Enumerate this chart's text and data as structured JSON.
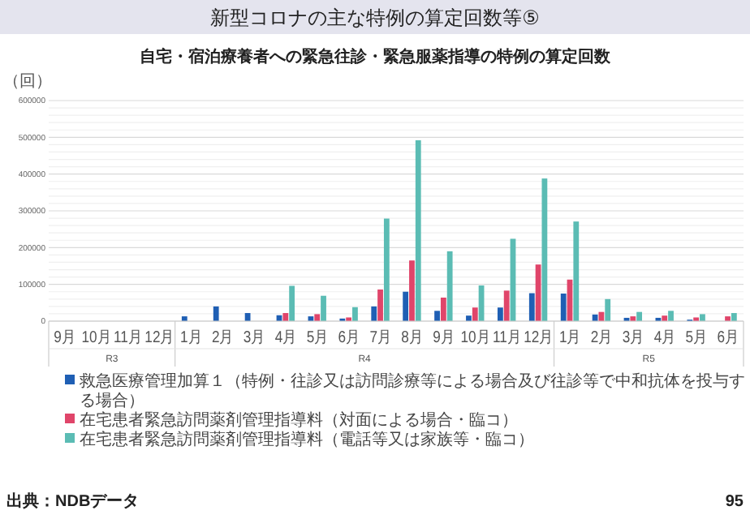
{
  "chart_data": {
    "type": "bar",
    "title": "新型コロナの主な特例の算定回数等⑤",
    "subtitle": "自宅・宿泊療養者への緊急往診・緊急服薬指導の特例の算定回数",
    "ylabel": "（回）",
    "categories": [
      "9月",
      "10月",
      "11月",
      "12月",
      "1月",
      "2月",
      "3月",
      "4月",
      "5月",
      "6月",
      "7月",
      "8月",
      "9月",
      "10月",
      "11月",
      "12月",
      "1月",
      "2月",
      "3月",
      "4月",
      "5月",
      "6月"
    ],
    "series": [
      {
        "name": "救急医療管理加算１（特例・往診又は訪問診療等による場合及び往診等で中和抗体を投与する場合）",
        "color": "#1f5fb4",
        "values": [
          0,
          0,
          0,
          0,
          13000,
          40000,
          22000,
          16000,
          13000,
          7000,
          40000,
          80000,
          28000,
          15000,
          37000,
          76000,
          75000,
          18000,
          9000,
          9000,
          4000,
          0
        ]
      },
      {
        "name": "在宅患者緊急訪問薬剤管理指導料（対面による場合・臨コ）",
        "color": "#e0456a",
        "values": [
          0,
          0,
          0,
          0,
          0,
          0,
          0,
          22000,
          19000,
          10000,
          86000,
          165000,
          64000,
          37000,
          83000,
          154000,
          113000,
          25000,
          13000,
          15000,
          10000,
          13000
        ]
      },
      {
        "name": "在宅患者緊急訪問薬剤管理指導料（電話等又は家族等・臨コ）",
        "color": "#5bbcb4",
        "values": [
          0,
          0,
          0,
          0,
          0,
          0,
          0,
          96000,
          69000,
          38000,
          279000,
          492000,
          190000,
          97000,
          224000,
          388000,
          271000,
          60000,
          25000,
          28000,
          19000,
          22000
        ]
      }
    ],
    "ylim": [
      0,
      600000
    ],
    "yticks": [
      0,
      {
        "value": 20000,
        "label": null
      },
      {
        "value": 40000,
        "label": null
      },
      {
        "value": 60000,
        "label": null
      },
      {
        "value": 80000,
        "label": null
      },
      100000,
      {
        "value": 120000,
        "label": null
      },
      {
        "value": 140000,
        "label": null
      },
      {
        "value": 160000,
        "label": null
      },
      {
        "value": 180000,
        "label": null
      },
      200000,
      {
        "value": 220000,
        "label": null
      },
      {
        "value": 240000,
        "label": null
      },
      {
        "value": 260000,
        "label": null
      },
      {
        "value": 280000,
        "label": null
      },
      300000,
      {
        "value": 320000,
        "label": null
      },
      {
        "value": 340000,
        "label": null
      },
      {
        "value": 360000,
        "label": null
      },
      {
        "value": 380000,
        "label": null
      },
      400000,
      {
        "value": 420000,
        "label": null
      },
      {
        "value": 440000,
        "label": null
      },
      {
        "value": 460000,
        "label": null
      },
      {
        "value": 480000,
        "label": null
      },
      500000,
      {
        "value": 520000,
        "label": null
      },
      {
        "value": 540000,
        "label": null
      },
      {
        "value": 560000,
        "label": null
      },
      {
        "value": 580000,
        "label": null
      },
      600000
    ],
    "grid": "y",
    "legend": "bottom",
    "annotations": [
      "R3",
      "R4",
      "R5",
      "出典：NDBデータ",
      "95"
    ]
  }
}
